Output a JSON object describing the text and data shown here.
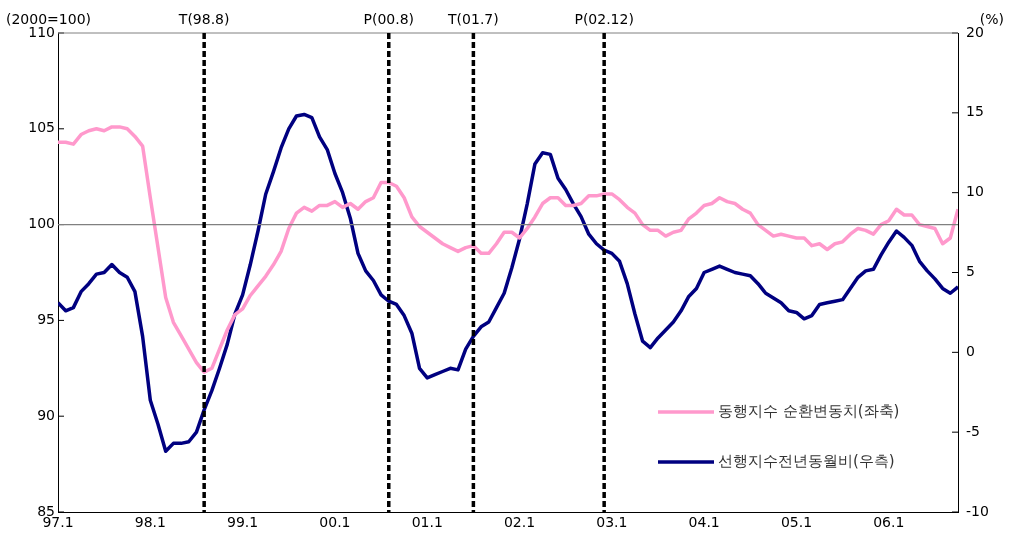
{
  "chart_data": {
    "type": "line",
    "ylabel": "(2000=100)",
    "y2label": "(%)",
    "x": [
      "1997-01",
      "1997-02",
      "1997-03",
      "1997-04",
      "1997-05",
      "1997-06",
      "1997-07",
      "1997-08",
      "1997-09",
      "1997-10",
      "1997-11",
      "1997-12",
      "1998-01",
      "1998-02",
      "1998-03",
      "1998-04",
      "1998-05",
      "1998-06",
      "1998-07",
      "1998-08",
      "1998-09",
      "1998-10",
      "1998-11",
      "1998-12",
      "1999-01",
      "1999-02",
      "1999-03",
      "1999-04",
      "1999-05",
      "1999-06",
      "1999-07",
      "1999-08",
      "1999-09",
      "1999-10",
      "1999-11",
      "1999-12",
      "2000-01",
      "2000-02",
      "2000-03",
      "2000-04",
      "2000-05",
      "2000-06",
      "2000-07",
      "2000-08",
      "2000-09",
      "2000-10",
      "2000-11",
      "2000-12",
      "2001-01",
      "2001-02",
      "2001-03",
      "2001-04",
      "2001-05",
      "2001-06",
      "2001-07",
      "2001-08",
      "2001-09",
      "2001-10",
      "2001-11",
      "2001-12",
      "2002-01",
      "2002-02",
      "2002-03",
      "2002-04",
      "2002-05",
      "2002-06",
      "2002-07",
      "2002-08",
      "2002-09",
      "2002-10",
      "2002-11",
      "2002-12",
      "2003-01",
      "2003-02",
      "2003-03",
      "2003-04",
      "2003-05",
      "2003-06",
      "2003-07",
      "2003-08",
      "2003-09",
      "2003-10",
      "2003-11",
      "2003-12",
      "2004-01",
      "2004-02",
      "2004-03",
      "2004-04",
      "2004-05",
      "2004-06",
      "2004-07",
      "2004-08",
      "2004-09",
      "2004-10",
      "2004-11",
      "2004-12",
      "2005-01",
      "2005-02",
      "2005-03",
      "2005-04",
      "2005-05",
      "2005-06",
      "2005-07",
      "2005-08",
      "2005-09",
      "2005-10",
      "2005-11",
      "2005-12",
      "2006-01",
      "2006-02",
      "2006-03",
      "2006-04",
      "2006-05",
      "2006-06",
      "2006-07",
      "2006-08",
      "2006-09",
      "2006-10"
    ],
    "xlim": [
      "1997-01",
      "2006-10"
    ],
    "xticks": [
      {
        "value": "1997-01",
        "label": "97.1"
      },
      {
        "value": "1998-01",
        "label": "98.1"
      },
      {
        "value": "1999-01",
        "label": "99.1"
      },
      {
        "value": "2000-01",
        "label": "00.1"
      },
      {
        "value": "2001-01",
        "label": "01.1"
      },
      {
        "value": "2002-01",
        "label": "02.1"
      },
      {
        "value": "2003-01",
        "label": "03.1"
      },
      {
        "value": "2004-01",
        "label": "04.1"
      },
      {
        "value": "2005-01",
        "label": "05.1"
      },
      {
        "value": "2006-01",
        "label": "06.1"
      }
    ],
    "ylim": [
      85,
      110
    ],
    "yticks": [
      85,
      90,
      95,
      100,
      105,
      110
    ],
    "y2lim": [
      -10,
      20
    ],
    "y2ticks": [
      -10,
      -5,
      0,
      5,
      10,
      15,
      20
    ],
    "series": [
      {
        "name": "동행지수 순환변동치(좌축)",
        "color": "#ff99cc",
        "values": [
          104.3,
          104.3,
          104.2,
          104.7,
          104.9,
          105.0,
          104.9,
          105.1,
          105.1,
          105.0,
          104.6,
          104.1,
          101.4,
          98.8,
          96.2,
          94.9,
          94.2,
          93.5,
          92.8,
          92.3,
          92.5,
          93.5,
          94.5,
          95.3,
          95.6,
          96.3,
          96.8,
          97.3,
          97.9,
          98.6,
          99.8,
          100.6,
          100.9,
          100.7,
          101.0,
          101.0,
          101.2,
          100.9,
          101.1,
          100.8,
          101.2,
          101.4,
          102.2,
          102.2,
          102.0,
          101.4,
          100.4,
          99.9,
          99.6,
          99.3,
          99.0,
          98.8,
          98.6,
          98.8,
          98.9,
          98.5,
          98.5,
          99.0,
          99.6,
          99.6,
          99.3,
          99.8,
          100.4,
          101.1,
          101.4,
          101.4,
          101.0,
          101.0,
          101.1,
          101.5,
          101.5,
          101.6,
          101.6,
          101.3,
          100.9,
          100.6,
          100.0,
          99.7,
          99.7,
          99.4,
          99.6,
          99.7,
          100.3,
          100.6,
          101.0,
          101.1,
          101.4,
          101.2,
          101.1,
          100.8,
          100.6,
          100.0,
          99.7,
          99.4,
          99.5,
          99.4,
          99.3,
          99.3,
          98.9,
          99.0,
          98.7,
          99.0,
          99.1,
          99.5,
          99.8,
          99.7,
          99.5,
          100.0,
          100.2,
          100.8,
          100.5,
          100.5,
          100.0,
          99.9,
          99.8,
          99.0,
          99.3,
          100.8
        ]
      },
      {
        "name": "선행지수전년동월비(우측)",
        "color": "#000080",
        "axis": "y2",
        "values": [
          3.1,
          2.6,
          2.8,
          3.8,
          4.3,
          4.9,
          5.0,
          5.5,
          5.0,
          4.7,
          3.8,
          1.0,
          -3.0,
          -4.5,
          -6.2,
          -5.7,
          -5.7,
          -5.6,
          -5.0,
          -3.6,
          -2.4,
          -1.0,
          0.5,
          2.4,
          3.6,
          5.5,
          7.6,
          9.9,
          11.3,
          12.8,
          14.0,
          14.8,
          14.9,
          14.7,
          13.5,
          12.7,
          11.2,
          10.0,
          8.4,
          6.2,
          5.1,
          4.5,
          3.6,
          3.2,
          3.0,
          2.3,
          1.2,
          -1.0,
          -1.6,
          -1.4,
          -1.2,
          -1.0,
          -1.1,
          0.2,
          1.0,
          1.6,
          1.9,
          2.8,
          3.7,
          5.3,
          7.1,
          9.3,
          11.8,
          12.5,
          12.4,
          10.9,
          10.2,
          9.3,
          8.5,
          7.4,
          6.8,
          6.4,
          6.2,
          5.7,
          4.3,
          2.4,
          0.7,
          0.3,
          0.9,
          1.4,
          1.9,
          2.6,
          3.5,
          4.0,
          5.0,
          5.2,
          5.4,
          5.2,
          5.0,
          4.9,
          4.8,
          4.3,
          3.7,
          3.4,
          3.1,
          2.6,
          2.5,
          2.1,
          2.3,
          3.0,
          3.1,
          3.2,
          3.3,
          4.0,
          4.7,
          5.1,
          5.2,
          6.1,
          6.9,
          7.6,
          7.2,
          6.7,
          5.7,
          5.1,
          4.6,
          4.0,
          3.7,
          4.1
        ]
      }
    ],
    "ref_lines": [
      {
        "axis": "y",
        "value": 100,
        "color": "#808080",
        "line_style": "solid"
      },
      {
        "axis": "x",
        "value": "1998-08",
        "label": "T(98.8)",
        "color": "#000000",
        "line_style": "dashed"
      },
      {
        "axis": "x",
        "value": "2000-08",
        "label": "P(00.8)",
        "color": "#000000",
        "line_style": "dashed"
      },
      {
        "axis": "x",
        "value": "2001-07",
        "label": "T(01.7)",
        "color": "#000000",
        "line_style": "dashed"
      },
      {
        "axis": "x",
        "value": "2002-12",
        "label": "P(02.12)",
        "color": "#000000",
        "line_style": "dashed"
      }
    ],
    "grid": false,
    "legend": "bottom right",
    "marker": "none",
    "line_style": "solid"
  }
}
